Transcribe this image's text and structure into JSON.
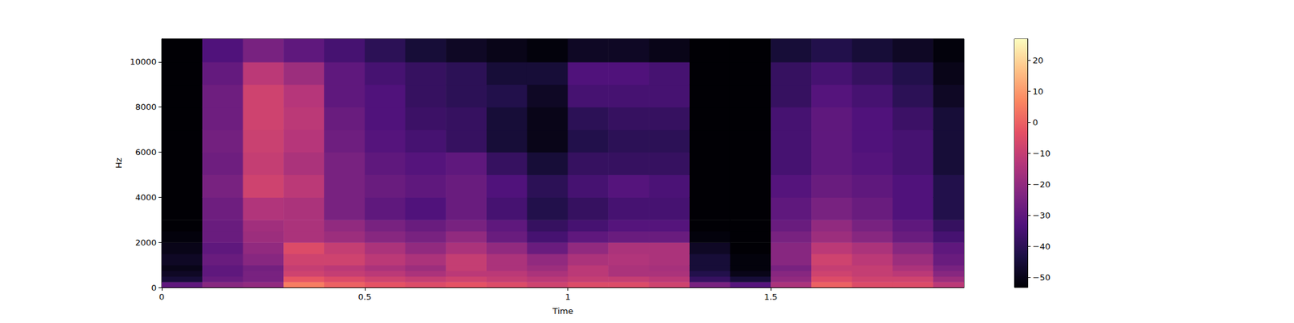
{
  "chart_data": {
    "type": "heatmap",
    "xlabel": "Time",
    "ylabel": "Hz",
    "xlim": [
      0,
      1.976
    ],
    "xticks": [
      0,
      0.5,
      1,
      1.5
    ],
    "ylim": [
      0,
      11025
    ],
    "yticks": [
      0,
      2000,
      4000,
      6000,
      8000,
      10000
    ],
    "x_edges": [
      0,
      0.1,
      0.2,
      0.3,
      0.4,
      0.5,
      0.6,
      0.7,
      0.8,
      0.9,
      1.0,
      1.1,
      1.2,
      1.3,
      1.4,
      1.5,
      1.6,
      1.7,
      1.8,
      1.9,
      1.976
    ],
    "y_edges": [
      0,
      250,
      500,
      750,
      1000,
      1500,
      2000,
      2500,
      3000,
      4000,
      5000,
      6000,
      7000,
      8000,
      9000,
      10000,
      11025
    ],
    "cells": [
      [
        -30,
        -45,
        -48,
        -50,
        -48,
        -50,
        -52,
        -53,
        -53,
        -53,
        -53,
        -53,
        -53,
        -53,
        -53,
        -53
      ],
      [
        -22,
        -28,
        -30,
        -30,
        -28,
        -30,
        -28,
        -28,
        -27,
        -25,
        -27,
        -26,
        -27,
        -27,
        -29,
        -33
      ],
      [
        -20,
        -25,
        -25,
        -26,
        -22,
        -20,
        -18,
        -17,
        -14,
        -8,
        -10,
        -9,
        -8,
        -8,
        -12,
        -25
      ],
      [
        5,
        -2,
        -8,
        -10,
        -8,
        -5,
        -15,
        -15,
        -15,
        -12,
        -15,
        -13,
        -12,
        -13,
        -18,
        -30
      ],
      [
        0,
        -5,
        -10,
        -12,
        -8,
        -10,
        -18,
        -20,
        -25,
        -25,
        -25,
        -27,
        -28,
        -30,
        -30,
        -35
      ],
      [
        -3,
        -8,
        -12,
        -15,
        -12,
        -15,
        -22,
        -25,
        -30,
        -28,
        -30,
        -32,
        -33,
        -33,
        -35,
        -40
      ],
      [
        -5,
        -10,
        -15,
        -18,
        -15,
        -20,
        -25,
        -28,
        -33,
        -30,
        -32,
        -35,
        -37,
        -38,
        -38,
        -45
      ],
      [
        -3,
        -8,
        -12,
        -10,
        -10,
        -15,
        -20,
        -25,
        -28,
        -28,
        -30,
        -38,
        -38,
        -40,
        -40,
        -48
      ],
      [
        -5,
        -10,
        -12,
        -15,
        -15,
        -20,
        -28,
        -30,
        -35,
        -33,
        -38,
        -45,
        -45,
        -42,
        -45,
        -50
      ],
      [
        -8,
        -12,
        -15,
        -18,
        -20,
        -28,
        -35,
        -38,
        -42,
        -40,
        -45,
        -50,
        -50,
        -48,
        -45,
        -52
      ],
      [
        -5,
        -10,
        -12,
        -12,
        -15,
        -20,
        -30,
        -35,
        -38,
        -35,
        -38,
        -42,
        -40,
        -35,
        -33,
        -48
      ],
      [
        -5,
        -10,
        -15,
        -15,
        -14,
        -15,
        -28,
        -32,
        -35,
        -32,
        -38,
        -40,
        -38,
        -35,
        -33,
        -48
      ],
      [
        -8,
        -12,
        -15,
        -16,
        -15,
        -15,
        -28,
        -32,
        -35,
        -34,
        -38,
        -40,
        -38,
        -35,
        -35,
        -50
      ],
      [
        -25,
        -38,
        -42,
        -45,
        -45,
        -48,
        -52,
        -53,
        -53,
        -53,
        -53,
        -53,
        -53,
        -53,
        -53,
        -53
      ],
      [
        -32,
        -45,
        -50,
        -52,
        -52,
        -53,
        -53,
        -53,
        -53,
        -53,
        -53,
        -53,
        -53,
        -53,
        -53,
        -53
      ],
      [
        -15,
        -20,
        -22,
        -25,
        -22,
        -22,
        -25,
        -28,
        -30,
        -32,
        -35,
        -35,
        -35,
        -38,
        -38,
        -45
      ],
      [
        0,
        -5,
        -8,
        -10,
        -8,
        -12,
        -18,
        -20,
        -25,
        -28,
        -30,
        -30,
        -30,
        -32,
        -35,
        -42
      ],
      [
        -5,
        -8,
        -10,
        -10,
        -12,
        -15,
        -22,
        -25,
        -28,
        -30,
        -32,
        -33,
        -33,
        -35,
        -38,
        -45
      ],
      [
        -5,
        -8,
        -12,
        -15,
        -18,
        -22,
        -28,
        -30,
        -33,
        -33,
        -35,
        -35,
        -37,
        -40,
        -42,
        -48
      ],
      [
        -12,
        -18,
        -22,
        -25,
        -28,
        -30,
        -35,
        -38,
        -42,
        -42,
        -45,
        -45,
        -45,
        -48,
        -50,
        -52
      ]
    ],
    "colorbar": {
      "range": [
        -53.2,
        26.9
      ],
      "ticks": [
        {
          "value": -50,
          "label": "−50"
        },
        {
          "value": -40,
          "label": "−40"
        },
        {
          "value": -30,
          "label": "−30"
        },
        {
          "value": -20,
          "label": "−20"
        },
        {
          "value": -10,
          "label": "−10"
        },
        0,
        10,
        20
      ]
    }
  }
}
